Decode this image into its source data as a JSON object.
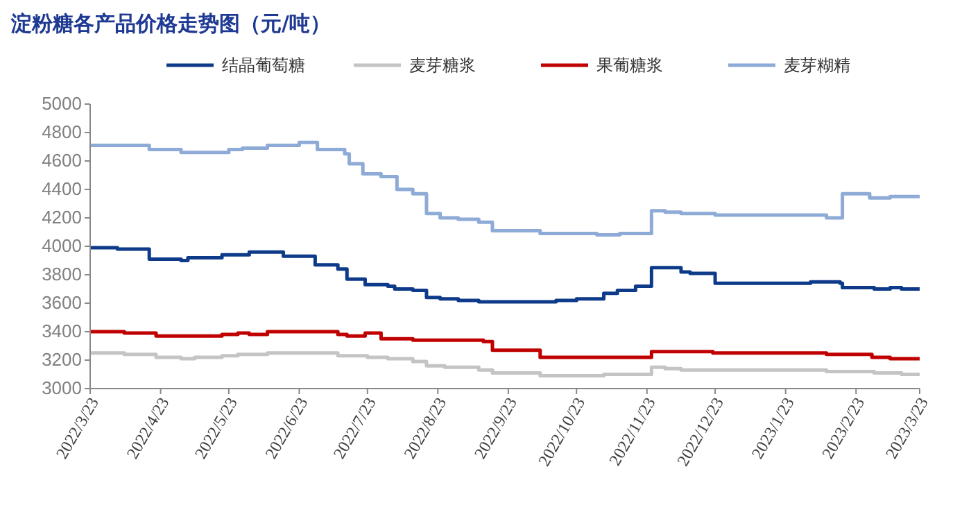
{
  "chart_data": {
    "type": "step",
    "title": "淀粉糖各产品价格走势图（元/吨）",
    "legend": "top",
    "grid": false,
    "marker": "none",
    "line_style": "solid",
    "xlim": [
      "2022-03-23",
      "2023-03-23"
    ],
    "xticks": [
      {
        "value": "2022-03-23",
        "label": "2022/3/23"
      },
      {
        "value": "2022-04-23",
        "label": "2022/4/23"
      },
      {
        "value": "2022-05-23",
        "label": "2022/5/23"
      },
      {
        "value": "2022-06-23",
        "label": "2022/6/23"
      },
      {
        "value": "2022-07-23",
        "label": "2022/7/23"
      },
      {
        "value": "2022-08-23",
        "label": "2022/8/23"
      },
      {
        "value": "2022-09-23",
        "label": "2022/9/23"
      },
      {
        "value": "2022-10-23",
        "label": "2022/10/23"
      },
      {
        "value": "2022-11-23",
        "label": "2022/11/23"
      },
      {
        "value": "2022-12-23",
        "label": "2022/12/23"
      },
      {
        "value": "2023-01-23",
        "label": "2023/1/23"
      },
      {
        "value": "2023-02-23",
        "label": "2023/2/23"
      },
      {
        "value": "2023-03-23",
        "label": "2023/3/23"
      }
    ],
    "ylim": [
      3000,
      5000
    ],
    "yticks": [
      3000,
      3200,
      3400,
      3600,
      3800,
      4000,
      4200,
      4400,
      4600,
      4800,
      5000
    ],
    "series": [
      {
        "name": "结晶葡萄糖",
        "color": "#0e3a8a",
        "x": [
          "2022-03-23",
          "2022-04-04",
          "2022-04-18",
          "2022-05-02",
          "2022-05-05",
          "2022-05-20",
          "2022-06-01",
          "2022-06-16",
          "2022-06-30",
          "2022-07-10",
          "2022-07-14",
          "2022-07-22",
          "2022-08-01",
          "2022-08-04",
          "2022-08-12",
          "2022-08-18",
          "2022-08-24",
          "2022-09-01",
          "2022-09-10",
          "2022-10-14",
          "2022-10-23",
          "2022-11-04",
          "2022-11-10",
          "2022-11-18",
          "2022-11-25",
          "2022-12-08",
          "2022-12-12",
          "2022-12-23",
          "2023-02-03",
          "2023-02-16",
          "2023-02-17",
          "2023-03-03",
          "2023-03-10",
          "2023-03-15",
          "2023-03-23"
        ],
        "values": [
          3990,
          3980,
          3910,
          3900,
          3920,
          3940,
          3960,
          3930,
          3870,
          3840,
          3770,
          3730,
          3720,
          3700,
          3690,
          3640,
          3630,
          3620,
          3610,
          3620,
          3630,
          3670,
          3690,
          3720,
          3850,
          3820,
          3810,
          3740,
          3750,
          3740,
          3710,
          3700,
          3710,
          3700,
          3700
        ]
      },
      {
        "name": "麦芽糖浆",
        "color": "#c4c4c4",
        "x": [
          "2022-03-23",
          "2022-04-07",
          "2022-04-21",
          "2022-05-02",
          "2022-05-08",
          "2022-05-20",
          "2022-05-27",
          "2022-06-09",
          "2022-07-10",
          "2022-07-23",
          "2022-08-01",
          "2022-08-12",
          "2022-08-18",
          "2022-08-26",
          "2022-09-10",
          "2022-09-16",
          "2022-10-07",
          "2022-11-04",
          "2022-11-25",
          "2022-12-01",
          "2022-12-08",
          "2023-02-10",
          "2023-03-03",
          "2023-03-15",
          "2023-03-23"
        ],
        "values": [
          3250,
          3240,
          3220,
          3210,
          3220,
          3230,
          3240,
          3250,
          3230,
          3220,
          3210,
          3190,
          3160,
          3150,
          3130,
          3110,
          3090,
          3100,
          3150,
          3140,
          3130,
          3120,
          3110,
          3100,
          3100
        ]
      },
      {
        "name": "果葡糖浆",
        "color": "#c00000",
        "x": [
          "2022-03-23",
          "2022-04-07",
          "2022-04-21",
          "2022-05-20",
          "2022-05-27",
          "2022-06-01",
          "2022-06-09",
          "2022-07-10",
          "2022-07-14",
          "2022-07-22",
          "2022-07-29",
          "2022-08-12",
          "2022-09-12",
          "2022-09-16",
          "2022-10-07",
          "2022-11-25",
          "2022-12-22",
          "2023-02-10",
          "2023-03-02",
          "2023-03-10",
          "2023-03-23"
        ],
        "values": [
          3400,
          3390,
          3370,
          3380,
          3390,
          3380,
          3400,
          3380,
          3370,
          3390,
          3350,
          3340,
          3330,
          3270,
          3220,
          3260,
          3250,
          3240,
          3220,
          3210,
          3210
        ]
      },
      {
        "name": "麦芽糊精",
        "color": "#8eaad6",
        "x": [
          "2022-03-23",
          "2022-04-18",
          "2022-05-02",
          "2022-05-23",
          "2022-05-29",
          "2022-06-09",
          "2022-06-23",
          "2022-07-01",
          "2022-07-13",
          "2022-07-15",
          "2022-07-21",
          "2022-07-29",
          "2022-08-05",
          "2022-08-12",
          "2022-08-18",
          "2022-08-24",
          "2022-09-01",
          "2022-09-10",
          "2022-09-16",
          "2022-10-07",
          "2022-11-01",
          "2022-11-11",
          "2022-11-25",
          "2022-12-01",
          "2022-12-08",
          "2022-12-23",
          "2023-02-10",
          "2023-02-17",
          "2023-03-01",
          "2023-03-10",
          "2023-03-23"
        ],
        "values": [
          4710,
          4680,
          4660,
          4680,
          4690,
          4710,
          4730,
          4680,
          4650,
          4580,
          4510,
          4490,
          4400,
          4370,
          4230,
          4200,
          4190,
          4170,
          4110,
          4090,
          4080,
          4090,
          4250,
          4240,
          4230,
          4220,
          4200,
          4370,
          4340,
          4350,
          4350
        ]
      }
    ]
  }
}
